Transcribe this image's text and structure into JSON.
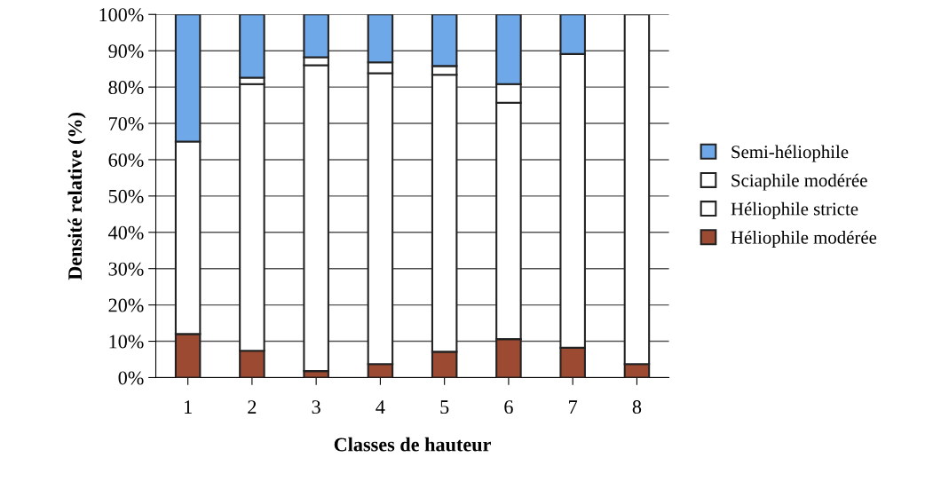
{
  "chart_data": {
    "type": "bar",
    "stacked": true,
    "xlabel": "Classes de hauteur",
    "ylabel": "Densité relative (%)",
    "categories": [
      "1",
      "2",
      "3",
      "4",
      "5",
      "6",
      "7",
      "8"
    ],
    "series": [
      {
        "name": "Héliophile modérée",
        "color": "#9c4a32",
        "values": [
          12,
          7.4,
          1.8,
          3.7,
          7.1,
          10.6,
          8.2,
          3.7
        ]
      },
      {
        "name": "Héliophile stricte",
        "color": "#ffffff",
        "values": [
          53,
          73.4,
          84.2,
          80.1,
          76.3,
          65.1,
          80.9,
          96.3
        ]
      },
      {
        "name": "Sciaphile modérée",
        "color": "#ffffff",
        "values": [
          null,
          1.8,
          2.2,
          3,
          2.4,
          5.1,
          null,
          null
        ]
      },
      {
        "name": "Semi-héliophile",
        "color": "#6fa8e8",
        "values": [
          35,
          17.4,
          11.8,
          13.2,
          14.2,
          19.2,
          10.9,
          null
        ]
      }
    ],
    "ylim": [
      0,
      100
    ],
    "yticks": [
      {
        "value": 0,
        "label": "0%"
      },
      {
        "value": 10,
        "label": "10%"
      },
      {
        "value": 20,
        "label": "20%"
      },
      {
        "value": 30,
        "label": "30%"
      },
      {
        "value": 40,
        "label": "40%"
      },
      {
        "value": 50,
        "label": "50%"
      },
      {
        "value": 60,
        "label": "60%"
      },
      {
        "value": 70,
        "label": "70%"
      },
      {
        "value": 80,
        "label": "80%"
      },
      {
        "value": 90,
        "label": "90%"
      },
      {
        "value": 100,
        "label": "100%"
      }
    ],
    "grid": "y",
    "legend": "right"
  }
}
